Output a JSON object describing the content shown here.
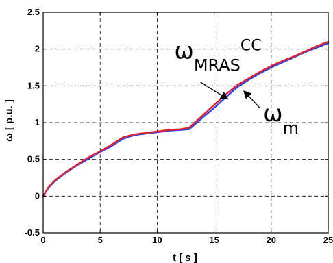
{
  "chart_data": {
    "type": "line",
    "title": "",
    "xlabel": "t [ s ]",
    "ylabel": "ω [ p.u. ]",
    "xlim": [
      0,
      25
    ],
    "ylim": [
      -0.5,
      2.5
    ],
    "xticks": [
      0,
      5,
      10,
      15,
      20,
      25
    ],
    "yticks": [
      -0.5,
      0,
      0.5,
      1,
      1.5,
      2,
      2.5
    ],
    "xtick_labels": [
      "0",
      "5",
      "10",
      "15",
      "20",
      "25"
    ],
    "ytick_labels": [
      "-0.5",
      "0",
      "0.5",
      "1",
      "1.5",
      "2",
      "2.5"
    ],
    "grid": true,
    "series": [
      {
        "label_base": "ω",
        "label_sub": "m",
        "label_sup": "",
        "color": "#3344dd",
        "x": [
          0,
          0.5,
          1,
          2,
          3,
          4,
          5,
          6,
          7,
          8,
          9,
          10,
          11,
          12,
          12.8,
          13.5,
          14,
          15,
          16,
          17,
          18,
          19,
          20,
          21,
          22,
          23,
          24,
          25
        ],
        "y": [
          0,
          0.12,
          0.2,
          0.32,
          0.42,
          0.51,
          0.6,
          0.68,
          0.78,
          0.83,
          0.85,
          0.87,
          0.89,
          0.9,
          0.91,
          1.0,
          1.07,
          1.2,
          1.34,
          1.48,
          1.58,
          1.67,
          1.75,
          1.82,
          1.89,
          1.96,
          2.02,
          2.08
        ]
      },
      {
        "label_base": "ω",
        "label_sub": "MRAS",
        "label_sup": "CC",
        "color": "#dd2233",
        "x": [
          0,
          0.5,
          1,
          2,
          3,
          4,
          5,
          6,
          7,
          8,
          9,
          10,
          11,
          12,
          12.8,
          13.5,
          14,
          15,
          16,
          17,
          18,
          19,
          20,
          21,
          22,
          23,
          24,
          25
        ],
        "y": [
          0,
          0.13,
          0.21,
          0.33,
          0.43,
          0.53,
          0.61,
          0.7,
          0.8,
          0.84,
          0.86,
          0.88,
          0.9,
          0.91,
          0.93,
          1.03,
          1.1,
          1.24,
          1.38,
          1.51,
          1.6,
          1.69,
          1.77,
          1.84,
          1.9,
          1.97,
          2.04,
          2.1
        ]
      }
    ],
    "annotations": [
      {
        "series": 1,
        "text_x": 11.5,
        "text_y": 1.87,
        "arrow_from": [
          13.8,
          1.55
        ],
        "arrow_to": [
          16.2,
          1.32
        ]
      },
      {
        "series": 0,
        "text_x": 19.3,
        "text_y": 1.02,
        "arrow_from": [
          19.0,
          1.2
        ],
        "arrow_to": [
          17.6,
          1.43
        ]
      }
    ]
  }
}
